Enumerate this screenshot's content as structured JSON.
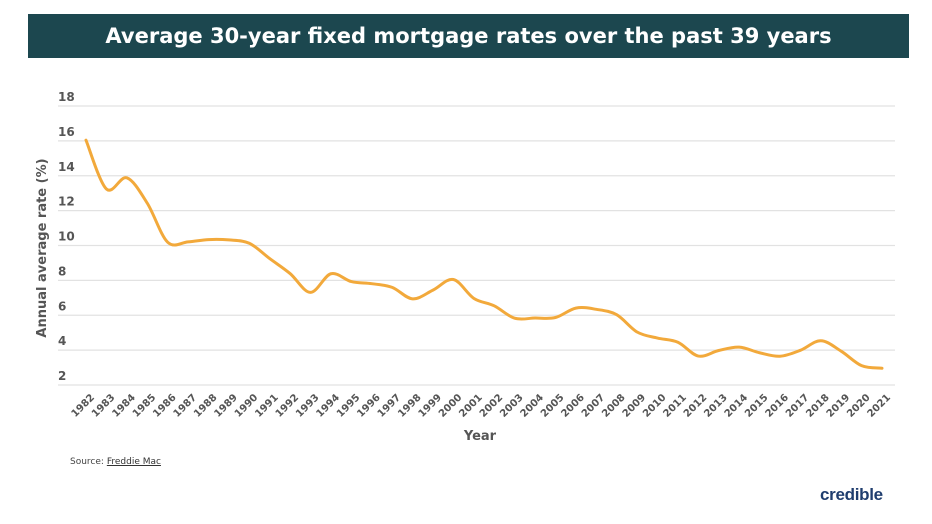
{
  "chart_data": {
    "type": "line",
    "title": "Average 30-year fixed mortgage rates over the past 39 years",
    "xlabel": "Year",
    "ylabel": "Annual average rate (%)",
    "ylim": [
      2,
      18
    ],
    "yticks": [
      2,
      4,
      6,
      8,
      10,
      12,
      14,
      16,
      18
    ],
    "grid": true,
    "line_color": "#f2a93b",
    "categories": [
      "1982",
      "1983",
      "1984",
      "1985",
      "1986",
      "1987",
      "1988",
      "1989",
      "1990",
      "1991",
      "1992",
      "1993",
      "1994",
      "1995",
      "1996",
      "1997",
      "1998",
      "1999",
      "2000",
      "2001",
      "2002",
      "2003",
      "2004",
      "2005",
      "2006",
      "2007",
      "2008",
      "2009",
      "2010",
      "2011",
      "2012",
      "2013",
      "2014",
      "2015",
      "2016",
      "2017",
      "2018",
      "2019",
      "2020",
      "2021"
    ],
    "values": [
      16.04,
      13.24,
      13.88,
      12.43,
      10.19,
      10.21,
      10.34,
      10.32,
      10.13,
      9.25,
      8.39,
      7.31,
      8.38,
      7.93,
      7.81,
      7.6,
      6.94,
      7.44,
      8.05,
      6.97,
      6.54,
      5.83,
      5.84,
      5.87,
      6.41,
      6.34,
      6.03,
      5.04,
      4.69,
      4.45,
      3.66,
      3.98,
      4.17,
      3.85,
      3.65,
      3.99,
      4.54,
      3.94,
      3.11,
      2.96
    ]
  },
  "source": {
    "label": "Source:",
    "link": "Freddie Mac"
  },
  "logo": "credible",
  "colors": {
    "title_bar": "#1c474f",
    "logo": "#1f3d6e"
  }
}
